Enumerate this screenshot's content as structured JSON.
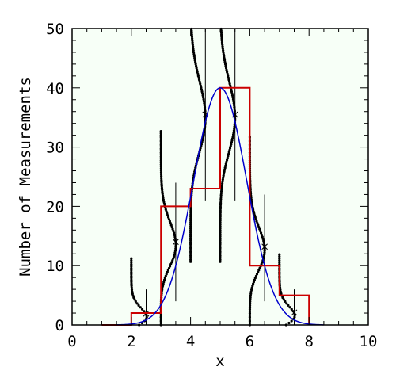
{
  "chart_data": {
    "type": "bar",
    "xlabel": "x",
    "ylabel": "Number of Measurements",
    "xlim": [
      0,
      10
    ],
    "ylim": [
      0,
      50
    ],
    "x_ticks": [
      0,
      2,
      4,
      6,
      8,
      10
    ],
    "y_ticks": [
      0,
      10,
      20,
      30,
      40,
      50
    ],
    "x_tick_labels": [
      "0",
      "2",
      "4",
      "6",
      "8",
      "10"
    ],
    "y_tick_labels": [
      "0",
      "10",
      "20",
      "30",
      "40",
      "50"
    ],
    "grid": false,
    "background_color": "#f7fff7",
    "histogram": {
      "color": "#cc0000",
      "bin_edges": [
        1,
        2,
        3,
        4,
        5,
        6,
        7,
        8
      ],
      "counts": [
        0,
        2,
        20,
        23,
        40,
        10,
        5
      ]
    },
    "curve": {
      "color": "#0000cc",
      "type": "gaussian",
      "mean": 5.0,
      "sigma": 0.9,
      "peak": 40.0,
      "x_range": [
        1.5,
        8.5
      ]
    },
    "expected_points": [
      {
        "x": 2.5,
        "y": 1.9,
        "y_range": [
          0,
          6
        ]
      },
      {
        "x": 3.5,
        "y": 14,
        "y_range": [
          4,
          24
        ]
      },
      {
        "x": 4.5,
        "y": 35.5,
        "y_range": [
          21,
          50
        ]
      },
      {
        "x": 5.5,
        "y": 35.5,
        "y_range": [
          21,
          50
        ]
      },
      {
        "x": 6.5,
        "y": 13.2,
        "y_range": [
          4,
          22
        ]
      },
      {
        "x": 7.5,
        "y": 2.1,
        "y_range": [
          0,
          6
        ]
      }
    ],
    "dotted_poisson_curves": [
      {
        "at_x": 2.0,
        "mean": 1.9
      },
      {
        "at_x": 3.0,
        "mean": 14
      },
      {
        "at_x": 4.0,
        "mean": 35.5
      },
      {
        "at_x": 5.0,
        "mean": 35.5
      },
      {
        "at_x": 6.0,
        "mean": 13.2
      },
      {
        "at_x": 7.0,
        "mean": 2.1
      }
    ]
  }
}
